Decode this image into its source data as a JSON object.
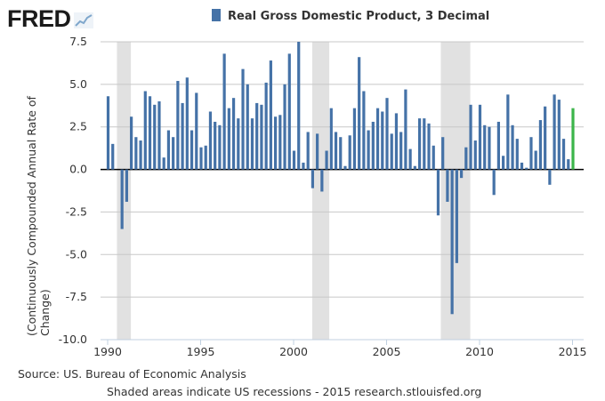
{
  "logo": {
    "text": "FRED"
  },
  "chart_data": {
    "type": "bar",
    "title": "Real Gross Domestic Product, 3 Decimal",
    "legend": [
      {
        "name": "Real Gross Domestic Product, 3 Decimal",
        "color": "#4572a7"
      }
    ],
    "legend_placement": "top-center",
    "ylabel": "(Continuously Compounded Annual Rate of Change)",
    "xlabel": "",
    "ylim": [
      -10,
      7.5
    ],
    "yticks": [
      "-10.0",
      "-7.5",
      "-5.0",
      "-2.5",
      "0.0",
      "2.5",
      "5.0",
      "7.5"
    ],
    "ytick_values": [
      -10,
      -7.5,
      -5,
      -2.5,
      0,
      2.5,
      5,
      7.5
    ],
    "xticks": [
      "1990",
      "1995",
      "2000",
      "2005",
      "2010",
      "2015"
    ],
    "xtick_values": [
      1990,
      1995,
      2000,
      2005,
      2010,
      2015
    ],
    "x_start": "1990-Q1",
    "frequency": "quarterly",
    "grid": true,
    "bar_color": "#4572a7",
    "highlight_color": "#3cb54a",
    "highlight_last": true,
    "values": [
      4.3,
      1.5,
      0.0,
      -3.5,
      -1.9,
      3.1,
      1.9,
      1.7,
      4.6,
      4.3,
      3.8,
      4.0,
      0.7,
      2.3,
      1.9,
      5.2,
      3.9,
      5.4,
      2.3,
      4.5,
      1.3,
      1.4,
      3.4,
      2.8,
      2.6,
      6.8,
      3.6,
      4.2,
      3.0,
      5.9,
      5.0,
      3.0,
      3.9,
      3.8,
      5.1,
      6.4,
      3.1,
      3.2,
      5.0,
      6.8,
      1.1,
      7.5,
      0.4,
      2.2,
      -1.1,
      2.1,
      -1.3,
      1.1,
      3.6,
      2.2,
      1.9,
      0.2,
      2.0,
      3.6,
      6.6,
      4.6,
      2.3,
      2.8,
      3.6,
      3.4,
      4.2,
      2.1,
      3.3,
      2.2,
      4.7,
      1.2,
      0.2,
      3.0,
      3.0,
      2.7,
      1.4,
      -2.7,
      1.9,
      -1.9,
      -8.5,
      -5.5,
      -0.5,
      1.3,
      3.8,
      1.7,
      3.8,
      2.6,
      2.5,
      -1.5,
      2.8,
      0.8,
      4.4,
      2.6,
      1.8,
      0.4,
      0.1,
      1.9,
      1.1,
      2.9,
      3.7,
      -0.9,
      4.4,
      4.1,
      1.8,
      0.6,
      3.6
    ],
    "recessions": [
      [
        1990.5,
        1991.25
      ],
      [
        2001.0,
        2001.917
      ],
      [
        2007.917,
        2009.5
      ]
    ]
  },
  "footer": {
    "source": "Source: US. Bureau of Economic Analysis",
    "note": "Shaded areas indicate US recessions - 2015 research.stlouisfed.org"
  }
}
